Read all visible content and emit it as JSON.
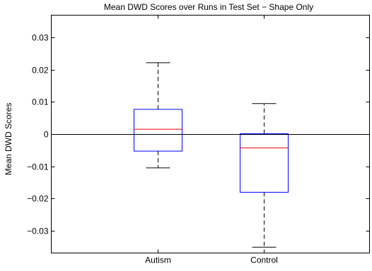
{
  "chart_data": {
    "type": "box",
    "title": "Mean DWD Scores over Runs in Test Set − Shape Only",
    "xlabel": "",
    "ylabel": "Mean DWD Scores",
    "ylim": [
      -0.037,
      0.037
    ],
    "yticks": [
      -0.03,
      -0.02,
      -0.01,
      0,
      0.01,
      0.02,
      0.03
    ],
    "ytick_labels": [
      "−0.03",
      "−0.02",
      "−0.01",
      "0",
      "0.01",
      "0.02",
      "0.03"
    ],
    "categories": [
      "Autism",
      "Control"
    ],
    "boxes": [
      {
        "category": "Autism",
        "whisker_low": -0.0105,
        "q1": -0.0053,
        "median": 0.0015,
        "q3": 0.0077,
        "whisker_high": 0.0222
      },
      {
        "category": "Control",
        "whisker_low": -0.0352,
        "q1": -0.0181,
        "median": -0.0043,
        "q3": 0.0001,
        "whisker_high": 0.0095
      }
    ],
    "reference_line": {
      "y": 0
    },
    "colors": {
      "box": "#0000ff",
      "median": "#ff0000",
      "whisker": "#000000",
      "reference": "#000000"
    },
    "grid": false
  }
}
